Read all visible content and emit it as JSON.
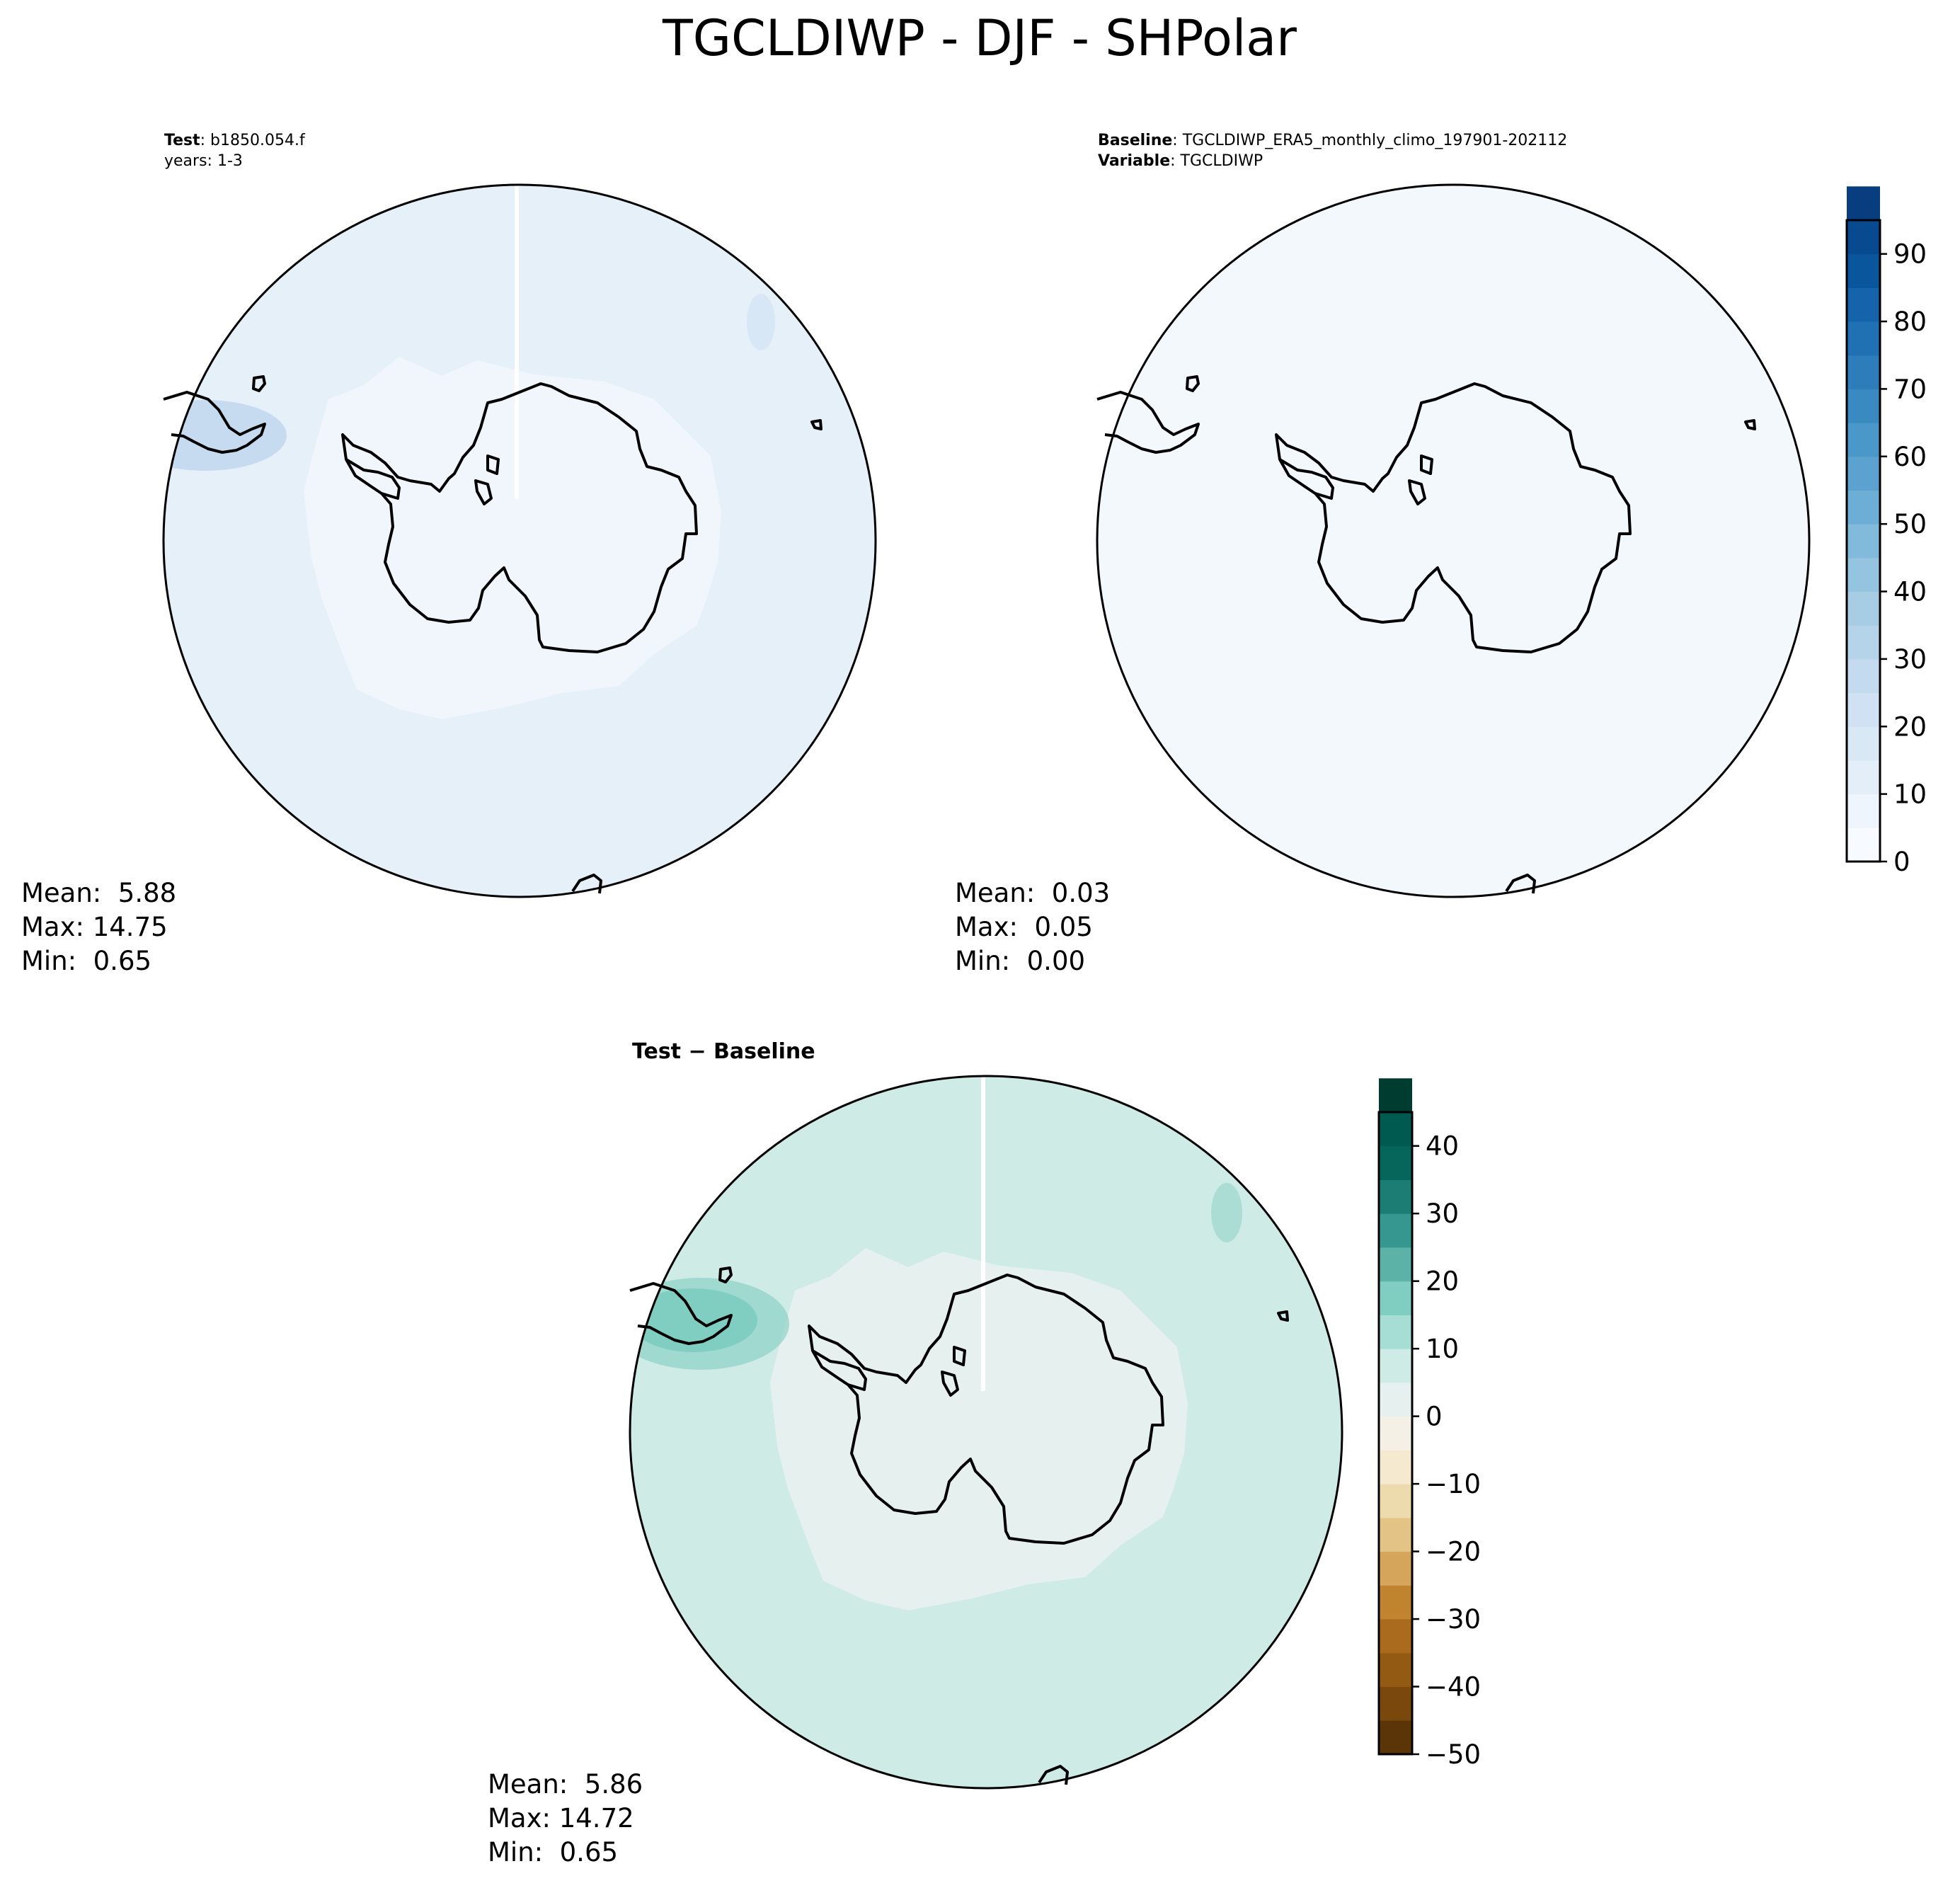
{
  "figure": {
    "title": "TGCLDIWP - DJF - SHPolar"
  },
  "chart_data": [
    {
      "type": "heatmap",
      "projection": "south-polar-stereographic",
      "header": [
        {
          "label": "Test",
          "text": ": b1850.054.f"
        },
        {
          "label": "",
          "text": "years: 1-3"
        }
      ],
      "field": {
        "background": "#e6f0f9",
        "inner_region": "#f0f6fc",
        "highlight": "#c6dbef",
        "meridian_gap": true
      },
      "stats": [
        "Mean:  5.88",
        "Max: 14.75",
        "Min:  0.65"
      ]
    },
    {
      "type": "heatmap",
      "projection": "south-polar-stereographic",
      "header": [
        {
          "label": "Baseline",
          "text": ": TGCLDIWP_ERA5_monthly_climo_197901-202112"
        },
        {
          "label": "Variable",
          "text": ": TGCLDIWP"
        }
      ],
      "field": {
        "background": "#f3f8fd",
        "inner_region": "#f3f8fd",
        "highlight": "#f3f8fd",
        "meridian_gap": false
      },
      "stats": [
        "Mean:  0.03",
        "Max:  0.05",
        "Min:  0.00"
      ],
      "colorbar": {
        "min": 0,
        "max": 95,
        "step": 5,
        "ticks": [
          0,
          10,
          20,
          30,
          40,
          50,
          60,
          70,
          80,
          90
        ],
        "colors": [
          "#f7fbff",
          "#eef5fc",
          "#e3eef9",
          "#d9e8f5",
          "#cfe1f2",
          "#c4daee",
          "#b5d4e9",
          "#a6cde3",
          "#94c4df",
          "#81badb",
          "#6daed6",
          "#5ba2d0",
          "#4a97c9",
          "#3a8ac2",
          "#2d7dbb",
          "#2070b4",
          "#1563aa",
          "#0a569d",
          "#084a8f",
          "#083d7f"
        ]
      },
      "colorbar_labels": [
        "0",
        "10",
        "20",
        "30",
        "40",
        "50",
        "60",
        "70",
        "80",
        "90"
      ]
    },
    {
      "type": "heatmap",
      "projection": "south-polar-stereographic",
      "header": [
        {
          "label": "Test",
          "text": " − Baseline"
        }
      ],
      "field": {
        "background": "#cfebe6",
        "inner_region": "#e6f0ef",
        "highlight": "#80cdc1",
        "meridian_gap": true
      },
      "stats": [
        "Mean:  5.86",
        "Max: 14.72",
        "Min:  0.65"
      ],
      "colorbar": {
        "min": -50,
        "max": 45,
        "step": 5,
        "ticks": [
          -50,
          -40,
          -30,
          -20,
          -10,
          0,
          10,
          20,
          30,
          40
        ],
        "colors": [
          "#5b3408",
          "#7a470c",
          "#935a14",
          "#ab6b1e",
          "#c0842f",
          "#d4a55b",
          "#e3c486",
          "#eedbad",
          "#f5ead0",
          "#f4f0e6",
          "#e6f0ef",
          "#cfebe6",
          "#a6ddd4",
          "#80cdc1",
          "#5db2a8",
          "#35978f",
          "#1c7d75",
          "#07665c",
          "#015a4f",
          "#003c30"
        ]
      },
      "colorbar_labels": [
        "−50",
        "−40",
        "−30",
        "−20",
        "−10",
        "0",
        "10",
        "20",
        "30",
        "40"
      ]
    }
  ]
}
